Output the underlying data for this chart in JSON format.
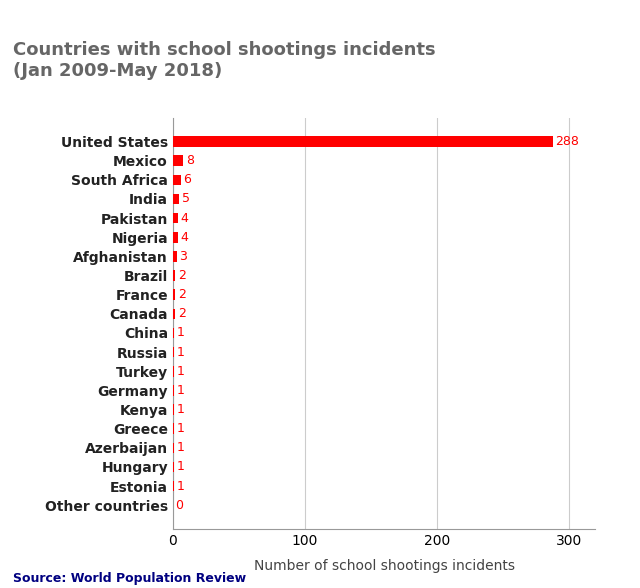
{
  "title": "Countries with school shootings incidents\n(Jan 2009-May 2018)",
  "countries": [
    "United States",
    "Mexico",
    "South Africa",
    "India",
    "Pakistan",
    "Nigeria",
    "Afghanistan",
    "Brazil",
    "France",
    "Canada",
    "China",
    "Russia",
    "Turkey",
    "Germany",
    "Kenya",
    "Greece",
    "Azerbaijan",
    "Hungary",
    "Estonia",
    "Other countries"
  ],
  "values": [
    288,
    8,
    6,
    5,
    4,
    4,
    3,
    2,
    2,
    2,
    1,
    1,
    1,
    1,
    1,
    1,
    1,
    1,
    1,
    0
  ],
  "bar_color": "#ff0000",
  "label_color": "#ff0000",
  "title_color": "#666666",
  "xlabel": "Number of school shootings incidents",
  "source": "Source: World Population Review",
  "source_color": "#000080",
  "xlim": [
    0,
    320
  ],
  "xticks": [
    0,
    100,
    200,
    300
  ],
  "background_color": "#ffffff",
  "grid_color": "#cccccc",
  "title_fontsize": 13,
  "axis_fontsize": 10,
  "label_fontsize": 9,
  "ytick_fontsize": 10,
  "source_fontsize": 9
}
